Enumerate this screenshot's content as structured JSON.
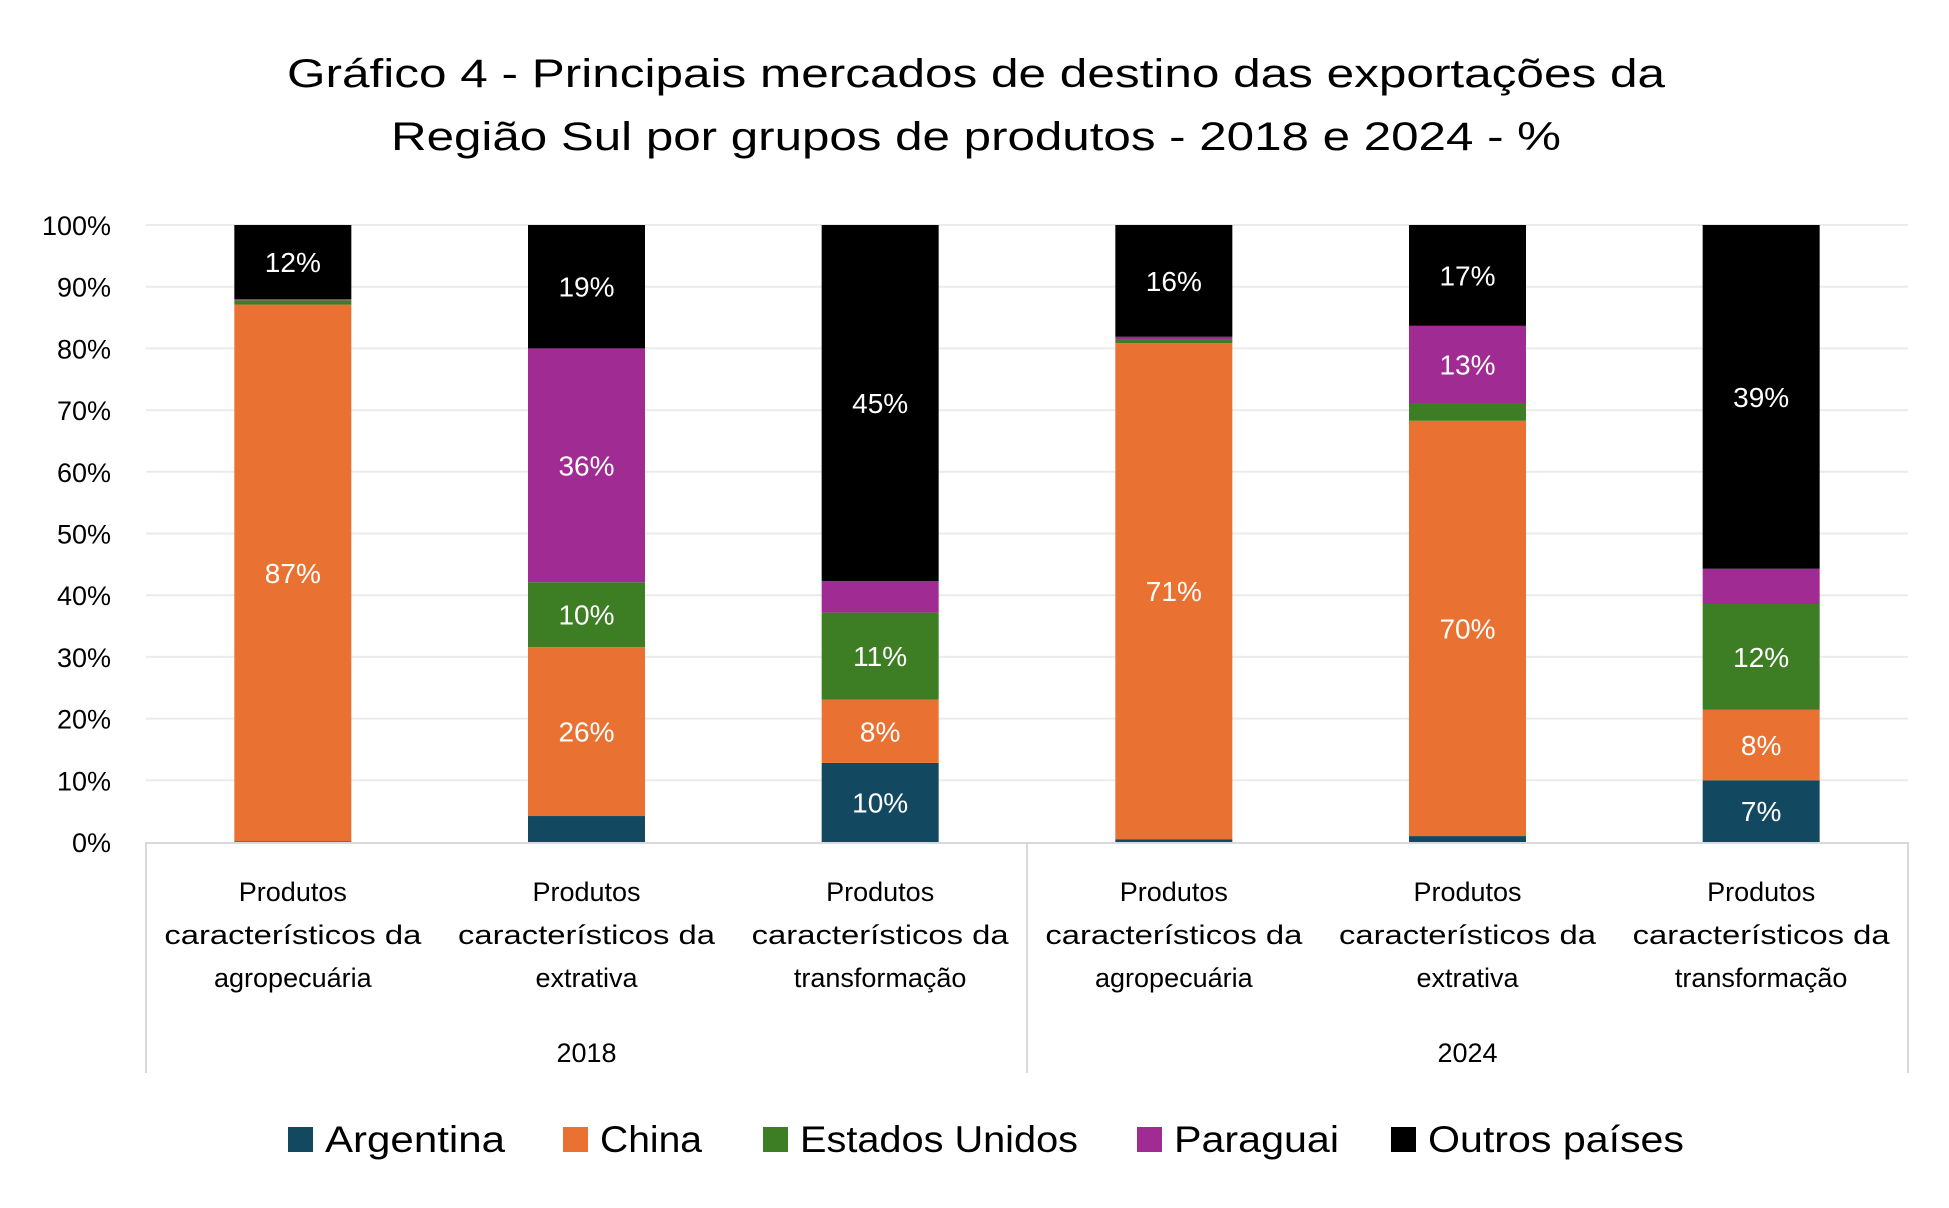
{
  "chart_data": {
    "type": "bar",
    "stacked": "percent",
    "title": [
      "Gráfico 4 - Principais mercados de destino das exportações da",
      "Região Sul por grupos de produtos - 2018 e 2024 - %"
    ],
    "xlabel": "",
    "ylabel": "",
    "ylim": [
      0,
      100
    ],
    "yticks": [
      "0%",
      "10%",
      "20%",
      "30%",
      "40%",
      "50%",
      "60%",
      "70%",
      "80%",
      "90%",
      "100%"
    ],
    "grid": true,
    "legend_position": "bottom",
    "groups": [
      {
        "label": "2018",
        "categories": [
          0,
          1,
          2
        ]
      },
      {
        "label": "2024",
        "categories": [
          3,
          4,
          5
        ]
      }
    ],
    "categories": [
      [
        "Produtos",
        "característicos da",
        "agropecuária"
      ],
      [
        "Produtos",
        "característicos da",
        "extrativa"
      ],
      [
        "Produtos",
        "característicos da",
        "transformação"
      ],
      [
        "Produtos",
        "característicos da",
        "agropecuária"
      ],
      [
        "Produtos",
        "característicos da",
        "extrativa"
      ],
      [
        "Produtos",
        "característicos da",
        "transformação"
      ]
    ],
    "series": [
      {
        "name": "Argentina",
        "color": "#134960",
        "values": [
          0.1,
          4,
          10,
          0.4,
          1,
          7
        ],
        "labels": [
          "",
          "",
          "10%",
          "",
          "",
          "7%"
        ]
      },
      {
        "name": "China",
        "color": "#E97132",
        "values": [
          87,
          26,
          8,
          71,
          70,
          8
        ],
        "labels": [
          "87%",
          "26%",
          "8%",
          "71%",
          "70%",
          "8%"
        ]
      },
      {
        "name": "Estados Unidos",
        "color": "#3D7D23",
        "values": [
          0.7,
          10,
          11,
          0.5,
          3,
          12
        ],
        "labels": [
          "",
          "10%",
          "11%",
          "",
          "",
          "12%"
        ]
      },
      {
        "name": "Paraguai",
        "color": "#A02B93",
        "values": [
          0.2,
          36,
          4,
          0.4,
          13,
          4
        ],
        "labels": [
          "",
          "36%",
          "",
          "",
          "13%",
          ""
        ]
      },
      {
        "name": "Outros países",
        "color": "#000000",
        "values": [
          12,
          19,
          45,
          16,
          17,
          39
        ],
        "labels": [
          "12%",
          "19%",
          "45%",
          "16%",
          "17%",
          "39%"
        ]
      }
    ]
  }
}
